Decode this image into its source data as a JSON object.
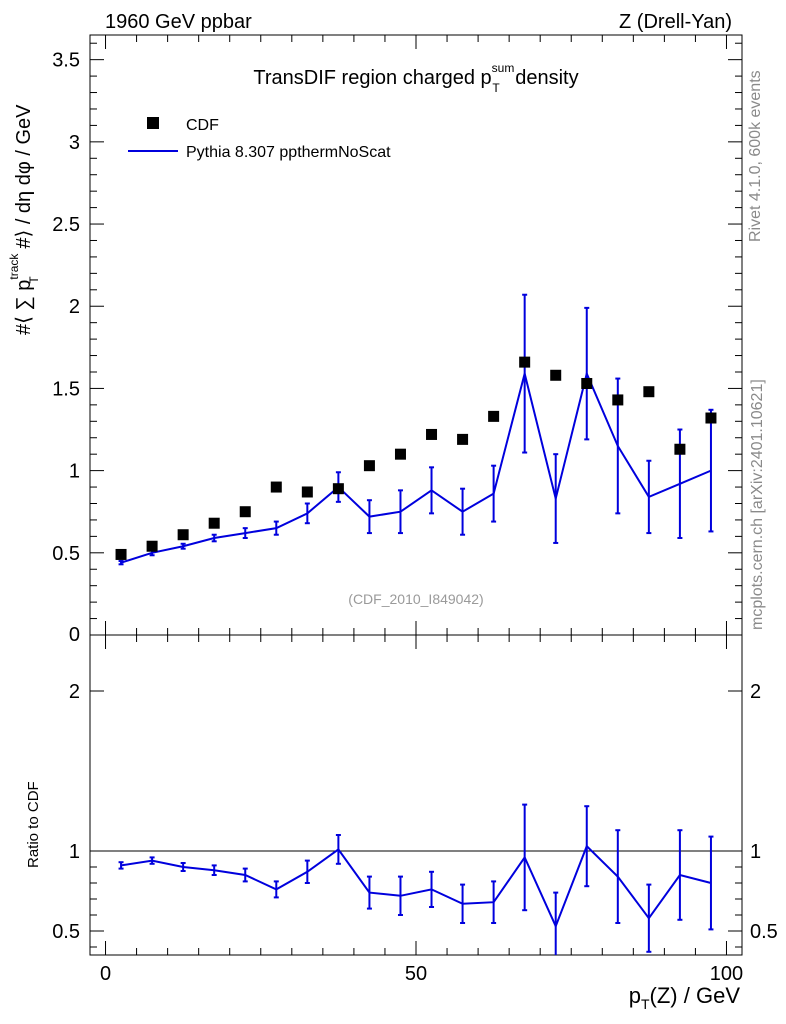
{
  "header": {
    "left": "1960 GeV ppbar",
    "right": "Z (Drell-Yan)"
  },
  "side_labels": {
    "rivet": "Rivet 4.1.0,  600k events",
    "mcplots": "mcplots.cern.ch [arXiv:2401.10621]"
  },
  "chart_data": [
    {
      "type": "scatter",
      "panel": "main",
      "title": "TransDIF region charged p_T^sum density",
      "title_parts": {
        "pre": "TransDIF region charged p",
        "sup": "sum",
        "sub": "T",
        "post": " density"
      },
      "xlabel": "p_T(Z) / GeV",
      "ylabel": "#⟨ ∑ p_T^track #⟩ / dη dφ / GeV",
      "ylabel_parts": {
        "pre": "#⟨ ∑ p",
        "sup": "track",
        "sub": "T",
        "post": " #⟩ / dη dφ / GeV"
      },
      "xlim": [
        -2.5,
        102.5
      ],
      "ylim": [
        0,
        3.65
      ],
      "yticks": [
        0.5,
        1,
        1.5,
        2,
        2.5,
        3,
        3.5
      ],
      "ytick_labels": [
        "0.5",
        "1",
        "1.5",
        "2",
        "2.5",
        "3",
        "3.5"
      ],
      "bottom_tick_label": "0",
      "annotation": "(CDF_2010_I849042)",
      "legend": [
        "CDF",
        "Pythia 8.307 ppthermNoScat"
      ],
      "series": [
        {
          "name": "CDF",
          "style": "square-markers",
          "color": "#000000",
          "x": [
            2.5,
            7.5,
            12.5,
            17.5,
            22.5,
            27.5,
            32.5,
            37.5,
            42.5,
            47.5,
            52.5,
            57.5,
            62.5,
            67.5,
            72.5,
            77.5,
            82.5,
            87.5,
            92.5,
            97.5
          ],
          "y": [
            0.49,
            0.54,
            0.61,
            0.68,
            0.75,
            0.9,
            0.87,
            0.89,
            1.03,
            1.1,
            1.22,
            1.19,
            1.33,
            1.66,
            1.58,
            1.53,
            1.43,
            1.48,
            1.13,
            1.32
          ]
        },
        {
          "name": "Pythia 8.307 ppthermNoScat",
          "style": "line-with-errors",
          "color": "#0000dd",
          "x": [
            2.5,
            7.5,
            12.5,
            17.5,
            22.5,
            27.5,
            32.5,
            37.5,
            42.5,
            47.5,
            52.5,
            57.5,
            62.5,
            67.5,
            72.5,
            77.5,
            82.5,
            87.5,
            92.5,
            97.5
          ],
          "y": [
            0.44,
            0.5,
            0.54,
            0.59,
            0.62,
            0.65,
            0.74,
            0.9,
            0.72,
            0.75,
            0.88,
            0.75,
            0.86,
            1.59,
            0.83,
            1.59,
            1.15,
            0.84,
            0.92,
            1.0
          ],
          "err": [
            0.01,
            0.015,
            0.015,
            0.02,
            0.03,
            0.04,
            0.06,
            0.09,
            0.1,
            0.13,
            0.14,
            0.14,
            0.17,
            0.48,
            0.27,
            0.4,
            0.41,
            0.22,
            0.33,
            0.37
          ]
        }
      ]
    },
    {
      "type": "line",
      "panel": "ratio",
      "ylabel": "Ratio to CDF",
      "xlabel": "p_T(Z) / GeV",
      "xlim": [
        -2.5,
        102.5
      ],
      "ylim": [
        0.35,
        2.35
      ],
      "yticks": [
        0.5,
        1,
        2
      ],
      "ytick_labels": [
        "0.5",
        "1",
        "2"
      ],
      "xticks": [
        0,
        50,
        100
      ],
      "xtick_labels": [
        "0",
        "50",
        "100"
      ],
      "reference_line": 1,
      "series": [
        {
          "name": "Pythia 8.307 ppthermNoScat / CDF",
          "color": "#0000dd",
          "x": [
            2.5,
            7.5,
            12.5,
            17.5,
            22.5,
            27.5,
            32.5,
            37.5,
            42.5,
            47.5,
            52.5,
            57.5,
            62.5,
            67.5,
            72.5,
            77.5,
            82.5,
            87.5,
            92.5,
            97.5
          ],
          "y": [
            0.91,
            0.94,
            0.9,
            0.88,
            0.85,
            0.76,
            0.87,
            1.01,
            0.74,
            0.72,
            0.76,
            0.67,
            0.68,
            0.96,
            0.53,
            1.03,
            0.84,
            0.58,
            0.85,
            0.8
          ],
          "err": [
            0.02,
            0.02,
            0.025,
            0.03,
            0.04,
            0.05,
            0.07,
            0.09,
            0.1,
            0.12,
            0.11,
            0.12,
            0.13,
            0.33,
            0.21,
            0.25,
            0.29,
            0.21,
            0.28,
            0.29
          ]
        }
      ]
    }
  ]
}
